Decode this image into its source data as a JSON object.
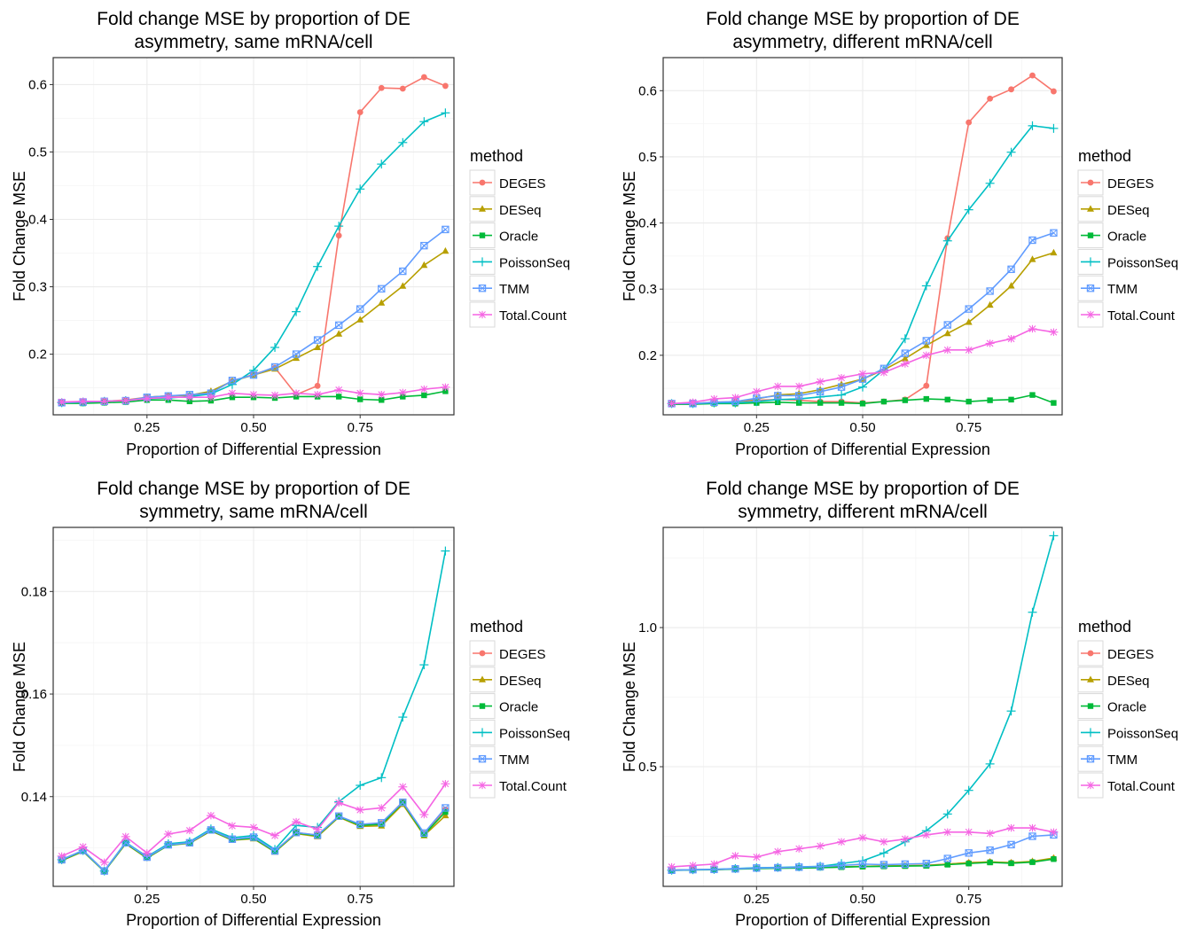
{
  "colors": {
    "DEGES": "#F8766D",
    "DESeq": "#B79F00",
    "Oracle": "#00BA38",
    "PoissonSeq": "#00BFC4",
    "TMM": "#619CFF",
    "Total.Count": "#F564E3",
    "panel_border": "#333333",
    "grid_major": "#EBEBEB",
    "grid_minor": "#F5F5F5"
  },
  "legend": {
    "title": "method",
    "placement": "right",
    "entries": [
      "DEGES",
      "DESeq",
      "Oracle",
      "PoissonSeq",
      "TMM",
      "Total.Count"
    ]
  },
  "markers": {
    "DEGES": "circle",
    "DESeq": "triangle",
    "Oracle": "square",
    "PoissonSeq": "plus",
    "TMM": "square-cross",
    "Total.Count": "asterisk"
  },
  "chart_data": [
    {
      "type": "line",
      "title_line1": "Fold change MSE by proportion of DE",
      "title_line2": "asymmetry, same mRNA/cell",
      "xlabel": "Proportion of Differential Expression",
      "ylabel": "Fold Change MSE",
      "xlim": [
        0.03,
        0.97
      ],
      "ylim": [
        0.11,
        0.64
      ],
      "xticks": [
        0.25,
        0.5,
        0.75
      ],
      "xtick_labels": [
        "0.25",
        "0.50",
        "0.75"
      ],
      "yticks": [
        0.2,
        0.3,
        0.4,
        0.5,
        0.6
      ],
      "ytick_labels": [
        "0.2",
        "0.3",
        "0.4",
        "0.5",
        "0.6"
      ],
      "grid": true,
      "x": [
        0.05,
        0.1,
        0.15,
        0.2,
        0.25,
        0.3,
        0.35,
        0.4,
        0.45,
        0.5,
        0.55,
        0.6,
        0.65,
        0.7,
        0.75,
        0.8,
        0.85,
        0.9,
        0.95
      ],
      "series": [
        {
          "name": "DEGES",
          "values": [
            0.128,
            0.129,
            0.13,
            0.132,
            0.136,
            0.138,
            0.139,
            0.143,
            0.16,
            0.17,
            0.18,
            0.14,
            0.153,
            0.376,
            0.559,
            0.595,
            0.594,
            0.611,
            0.598
          ]
        },
        {
          "name": "DESeq",
          "values": [
            0.128,
            0.129,
            0.13,
            0.131,
            0.136,
            0.138,
            0.139,
            0.145,
            0.16,
            0.169,
            0.178,
            0.194,
            0.21,
            0.23,
            0.251,
            0.276,
            0.301,
            0.332,
            0.353
          ]
        },
        {
          "name": "Oracle",
          "values": [
            0.127,
            0.127,
            0.128,
            0.129,
            0.132,
            0.132,
            0.13,
            0.131,
            0.136,
            0.136,
            0.135,
            0.137,
            0.137,
            0.137,
            0.133,
            0.132,
            0.137,
            0.139,
            0.145
          ]
        },
        {
          "name": "PoissonSeq",
          "values": [
            0.128,
            0.129,
            0.13,
            0.131,
            0.134,
            0.135,
            0.137,
            0.141,
            0.155,
            0.176,
            0.21,
            0.263,
            0.33,
            0.39,
            0.445,
            0.482,
            0.514,
            0.545,
            0.558
          ]
        },
        {
          "name": "TMM",
          "values": [
            0.128,
            0.129,
            0.13,
            0.131,
            0.136,
            0.138,
            0.14,
            0.142,
            0.161,
            0.169,
            0.181,
            0.2,
            0.221,
            0.243,
            0.267,
            0.297,
            0.323,
            0.361,
            0.385
          ]
        },
        {
          "name": "Total.Count",
          "values": [
            0.129,
            0.13,
            0.13,
            0.131,
            0.134,
            0.136,
            0.136,
            0.136,
            0.142,
            0.14,
            0.139,
            0.142,
            0.14,
            0.147,
            0.142,
            0.14,
            0.143,
            0.148,
            0.151
          ]
        }
      ]
    },
    {
      "type": "line",
      "title_line1": "Fold change MSE by proportion of DE",
      "title_line2": "asymmetry, different mRNA/cell",
      "xlabel": "Proportion of Differential Expression",
      "ylabel": "Fold Change MSE",
      "xlim": [
        0.03,
        0.97
      ],
      "ylim": [
        0.11,
        0.65
      ],
      "xticks": [
        0.25,
        0.5,
        0.75
      ],
      "xtick_labels": [
        "0.25",
        "0.50",
        "0.75"
      ],
      "yticks": [
        0.2,
        0.3,
        0.4,
        0.5,
        0.6
      ],
      "ytick_labels": [
        "0.2",
        "0.3",
        "0.4",
        "0.5",
        "0.6"
      ],
      "grid": true,
      "x": [
        0.05,
        0.1,
        0.15,
        0.2,
        0.25,
        0.3,
        0.35,
        0.4,
        0.45,
        0.5,
        0.55,
        0.6,
        0.65,
        0.7,
        0.75,
        0.8,
        0.85,
        0.9,
        0.95
      ],
      "series": [
        {
          "name": "DEGES",
          "values": [
            0.127,
            0.127,
            0.129,
            0.13,
            0.132,
            0.133,
            0.132,
            0.13,
            0.13,
            0.128,
            0.13,
            0.133,
            0.154,
            0.377,
            0.552,
            0.588,
            0.602,
            0.623,
            0.599
          ]
        },
        {
          "name": "DESeq",
          "values": [
            0.126,
            0.126,
            0.128,
            0.13,
            0.134,
            0.14,
            0.142,
            0.148,
            0.156,
            0.164,
            0.178,
            0.195,
            0.215,
            0.233,
            0.25,
            0.276,
            0.305,
            0.345,
            0.355
          ]
        },
        {
          "name": "Oracle",
          "values": [
            0.126,
            0.126,
            0.127,
            0.127,
            0.128,
            0.129,
            0.128,
            0.128,
            0.128,
            0.127,
            0.13,
            0.132,
            0.134,
            0.133,
            0.13,
            0.132,
            0.133,
            0.14,
            0.128
          ]
        },
        {
          "name": "PoissonSeq",
          "values": [
            0.127,
            0.127,
            0.128,
            0.128,
            0.13,
            0.133,
            0.134,
            0.137,
            0.14,
            0.152,
            0.178,
            0.225,
            0.305,
            0.373,
            0.42,
            0.46,
            0.507,
            0.547,
            0.543
          ]
        },
        {
          "name": "TMM",
          "values": [
            0.127,
            0.127,
            0.129,
            0.13,
            0.135,
            0.139,
            0.139,
            0.145,
            0.152,
            0.164,
            0.18,
            0.203,
            0.222,
            0.246,
            0.27,
            0.297,
            0.33,
            0.374,
            0.385
          ]
        },
        {
          "name": "Total.Count",
          "values": [
            0.127,
            0.129,
            0.134,
            0.136,
            0.145,
            0.153,
            0.153,
            0.16,
            0.166,
            0.172,
            0.174,
            0.187,
            0.2,
            0.208,
            0.208,
            0.218,
            0.225,
            0.24,
            0.235
          ]
        }
      ]
    },
    {
      "type": "line",
      "title_line1": "Fold change MSE by proportion of DE",
      "title_line2": "symmetry, same mRNA/cell",
      "xlabel": "Proportion of Differential Expression",
      "ylabel": "Fold Change MSE",
      "xlim": [
        0.03,
        0.97
      ],
      "ylim": [
        0.1225,
        0.1925
      ],
      "xticks": [
        0.25,
        0.5,
        0.75
      ],
      "xtick_labels": [
        "0.25",
        "0.50",
        "0.75"
      ],
      "yticks": [
        0.14,
        0.16,
        0.18
      ],
      "ytick_labels": [
        "0.14",
        "0.16",
        "0.18"
      ],
      "grid": true,
      "x": [
        0.05,
        0.1,
        0.15,
        0.2,
        0.25,
        0.3,
        0.35,
        0.4,
        0.45,
        0.5,
        0.55,
        0.6,
        0.65,
        0.7,
        0.75,
        0.8,
        0.85,
        0.9,
        0.95
      ],
      "series": [
        {
          "name": "DEGES",
          "values": [
            0.1277,
            0.1295,
            0.1255,
            0.131,
            0.1282,
            0.1306,
            0.131,
            0.1335,
            0.1317,
            0.132,
            0.1294,
            0.133,
            0.1325,
            0.1362,
            0.1345,
            0.1348,
            0.139,
            0.1328,
            0.1375
          ]
        },
        {
          "name": "DESeq",
          "values": [
            0.1275,
            0.1293,
            0.1254,
            0.1308,
            0.128,
            0.1305,
            0.1309,
            0.1333,
            0.1315,
            0.1318,
            0.1292,
            0.1328,
            0.1322,
            0.136,
            0.1342,
            0.1343,
            0.1385,
            0.1324,
            0.1363
          ]
        },
        {
          "name": "Oracle",
          "values": [
            0.1276,
            0.1294,
            0.1254,
            0.1309,
            0.1281,
            0.1305,
            0.131,
            0.1334,
            0.1316,
            0.1319,
            0.1293,
            0.1329,
            0.1324,
            0.1361,
            0.1344,
            0.1346,
            0.1388,
            0.1326,
            0.137
          ]
        },
        {
          "name": "PoissonSeq",
          "values": [
            0.1277,
            0.1295,
            0.1255,
            0.1311,
            0.1283,
            0.1308,
            0.1312,
            0.1337,
            0.132,
            0.1324,
            0.1297,
            0.1344,
            0.134,
            0.139,
            0.1422,
            0.1437,
            0.1555,
            0.1657,
            0.1879
          ]
        },
        {
          "name": "TMM",
          "values": [
            0.1277,
            0.1295,
            0.1255,
            0.131,
            0.1282,
            0.1306,
            0.131,
            0.1335,
            0.1317,
            0.1321,
            0.1294,
            0.133,
            0.1325,
            0.1362,
            0.1346,
            0.1349,
            0.1389,
            0.1329,
            0.1378
          ]
        },
        {
          "name": "Total.Count",
          "values": [
            0.1284,
            0.1302,
            0.1272,
            0.1322,
            0.129,
            0.1327,
            0.1334,
            0.1363,
            0.1343,
            0.134,
            0.1324,
            0.1351,
            0.1336,
            0.1388,
            0.1374,
            0.1378,
            0.1419,
            0.1365,
            0.1425
          ]
        }
      ]
    },
    {
      "type": "line",
      "title_line1": "Fold change MSE by proportion of DE",
      "title_line2": "symmetry, different mRNA/cell",
      "xlabel": "Proportion of Differential Expression",
      "ylabel": "Fold Change MSE",
      "xlim": [
        0.03,
        0.97
      ],
      "ylim": [
        0.07,
        1.36
      ],
      "xticks": [
        0.25,
        0.5,
        0.75
      ],
      "xtick_labels": [
        "0.25",
        "0.50",
        "0.75"
      ],
      "yticks": [
        0.5,
        1.0
      ],
      "ytick_labels": [
        "0.5",
        "1.0"
      ],
      "grid": true,
      "x": [
        0.05,
        0.1,
        0.15,
        0.2,
        0.25,
        0.3,
        0.35,
        0.4,
        0.45,
        0.5,
        0.55,
        0.6,
        0.65,
        0.7,
        0.75,
        0.8,
        0.85,
        0.9,
        0.95
      ],
      "series": [
        {
          "name": "DEGES",
          "values": [
            0.128,
            0.13,
            0.13,
            0.133,
            0.135,
            0.136,
            0.137,
            0.138,
            0.14,
            0.142,
            0.143,
            0.144,
            0.146,
            0.15,
            0.155,
            0.158,
            0.155,
            0.158,
            0.17
          ]
        },
        {
          "name": "DESeq",
          "values": [
            0.128,
            0.13,
            0.13,
            0.133,
            0.135,
            0.136,
            0.137,
            0.138,
            0.14,
            0.142,
            0.143,
            0.144,
            0.145,
            0.15,
            0.155,
            0.158,
            0.155,
            0.16,
            0.172
          ]
        },
        {
          "name": "Oracle",
          "values": [
            0.127,
            0.129,
            0.13,
            0.132,
            0.134,
            0.135,
            0.136,
            0.137,
            0.139,
            0.141,
            0.142,
            0.143,
            0.144,
            0.148,
            0.152,
            0.156,
            0.153,
            0.157,
            0.168
          ]
        },
        {
          "name": "PoissonSeq",
          "values": [
            0.128,
            0.13,
            0.131,
            0.134,
            0.137,
            0.138,
            0.14,
            0.142,
            0.152,
            0.162,
            0.19,
            0.23,
            0.27,
            0.33,
            0.415,
            0.51,
            0.7,
            1.055,
            1.33
          ]
        },
        {
          "name": "TMM",
          "values": [
            0.128,
            0.13,
            0.131,
            0.133,
            0.136,
            0.137,
            0.139,
            0.141,
            0.145,
            0.15,
            0.148,
            0.15,
            0.152,
            0.17,
            0.19,
            0.2,
            0.22,
            0.25,
            0.255
          ]
        },
        {
          "name": "Total.Count",
          "values": [
            0.14,
            0.145,
            0.15,
            0.18,
            0.175,
            0.195,
            0.205,
            0.215,
            0.23,
            0.245,
            0.23,
            0.24,
            0.255,
            0.265,
            0.265,
            0.26,
            0.28,
            0.28,
            0.265
          ]
        }
      ]
    }
  ]
}
